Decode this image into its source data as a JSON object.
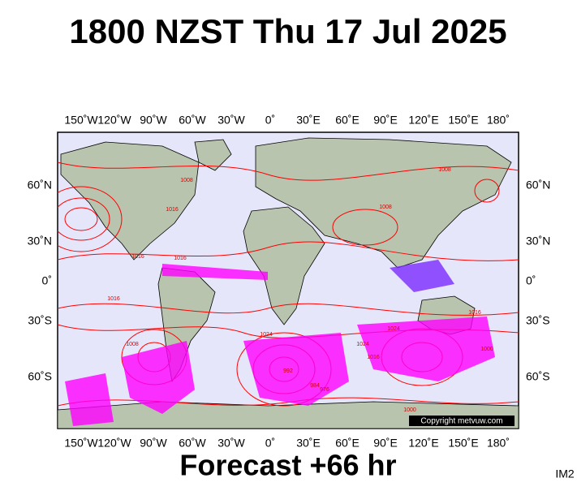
{
  "header": {
    "title": "1800 NZST Thu 17 Jul 2025"
  },
  "map": {
    "lon_labels": [
      "150˚W",
      "120˚W",
      "90˚W",
      "60˚W",
      "30˚W",
      "0˚",
      "30˚E",
      "60˚E",
      "90˚E",
      "120˚E",
      "150˚E",
      "180˚"
    ],
    "lat_labels": [
      "60˚N",
      "30˚N",
      "0˚",
      "30˚S",
      "60˚S"
    ],
    "isobar_labels": [
      "1008",
      "1016",
      "1016",
      "1016",
      "1024",
      "1008",
      "1016",
      "1024",
      "1008",
      "992",
      "984",
      "976",
      "1000",
      "1024",
      "1016",
      "1016",
      "1000",
      "1008"
    ],
    "copyright": "Copyright metvuw.com"
  },
  "footer": {
    "forecast": "Forecast +66 hr",
    "code": "IM2"
  }
}
